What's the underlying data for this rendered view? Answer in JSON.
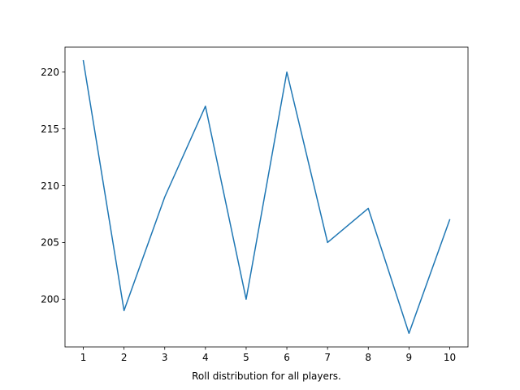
{
  "chart_data": {
    "type": "line",
    "title": "",
    "xlabel": "Roll distribution for all players.",
    "ylabel": "",
    "x": [
      1,
      2,
      3,
      4,
      5,
      6,
      7,
      8,
      9,
      10
    ],
    "series": [
      {
        "values": [
          221,
          199,
          209,
          217,
          200,
          220,
          205,
          208,
          197,
          207
        ],
        "color": "#1f77b4"
      }
    ],
    "xlim": [
      0.55,
      10.45
    ],
    "ylim": [
      195.8,
      222.2
    ],
    "xticks": [
      1,
      2,
      3,
      4,
      5,
      6,
      7,
      8,
      9,
      10
    ],
    "yticks": [
      200,
      205,
      210,
      215,
      220
    ],
    "grid": false,
    "legend": "none"
  }
}
